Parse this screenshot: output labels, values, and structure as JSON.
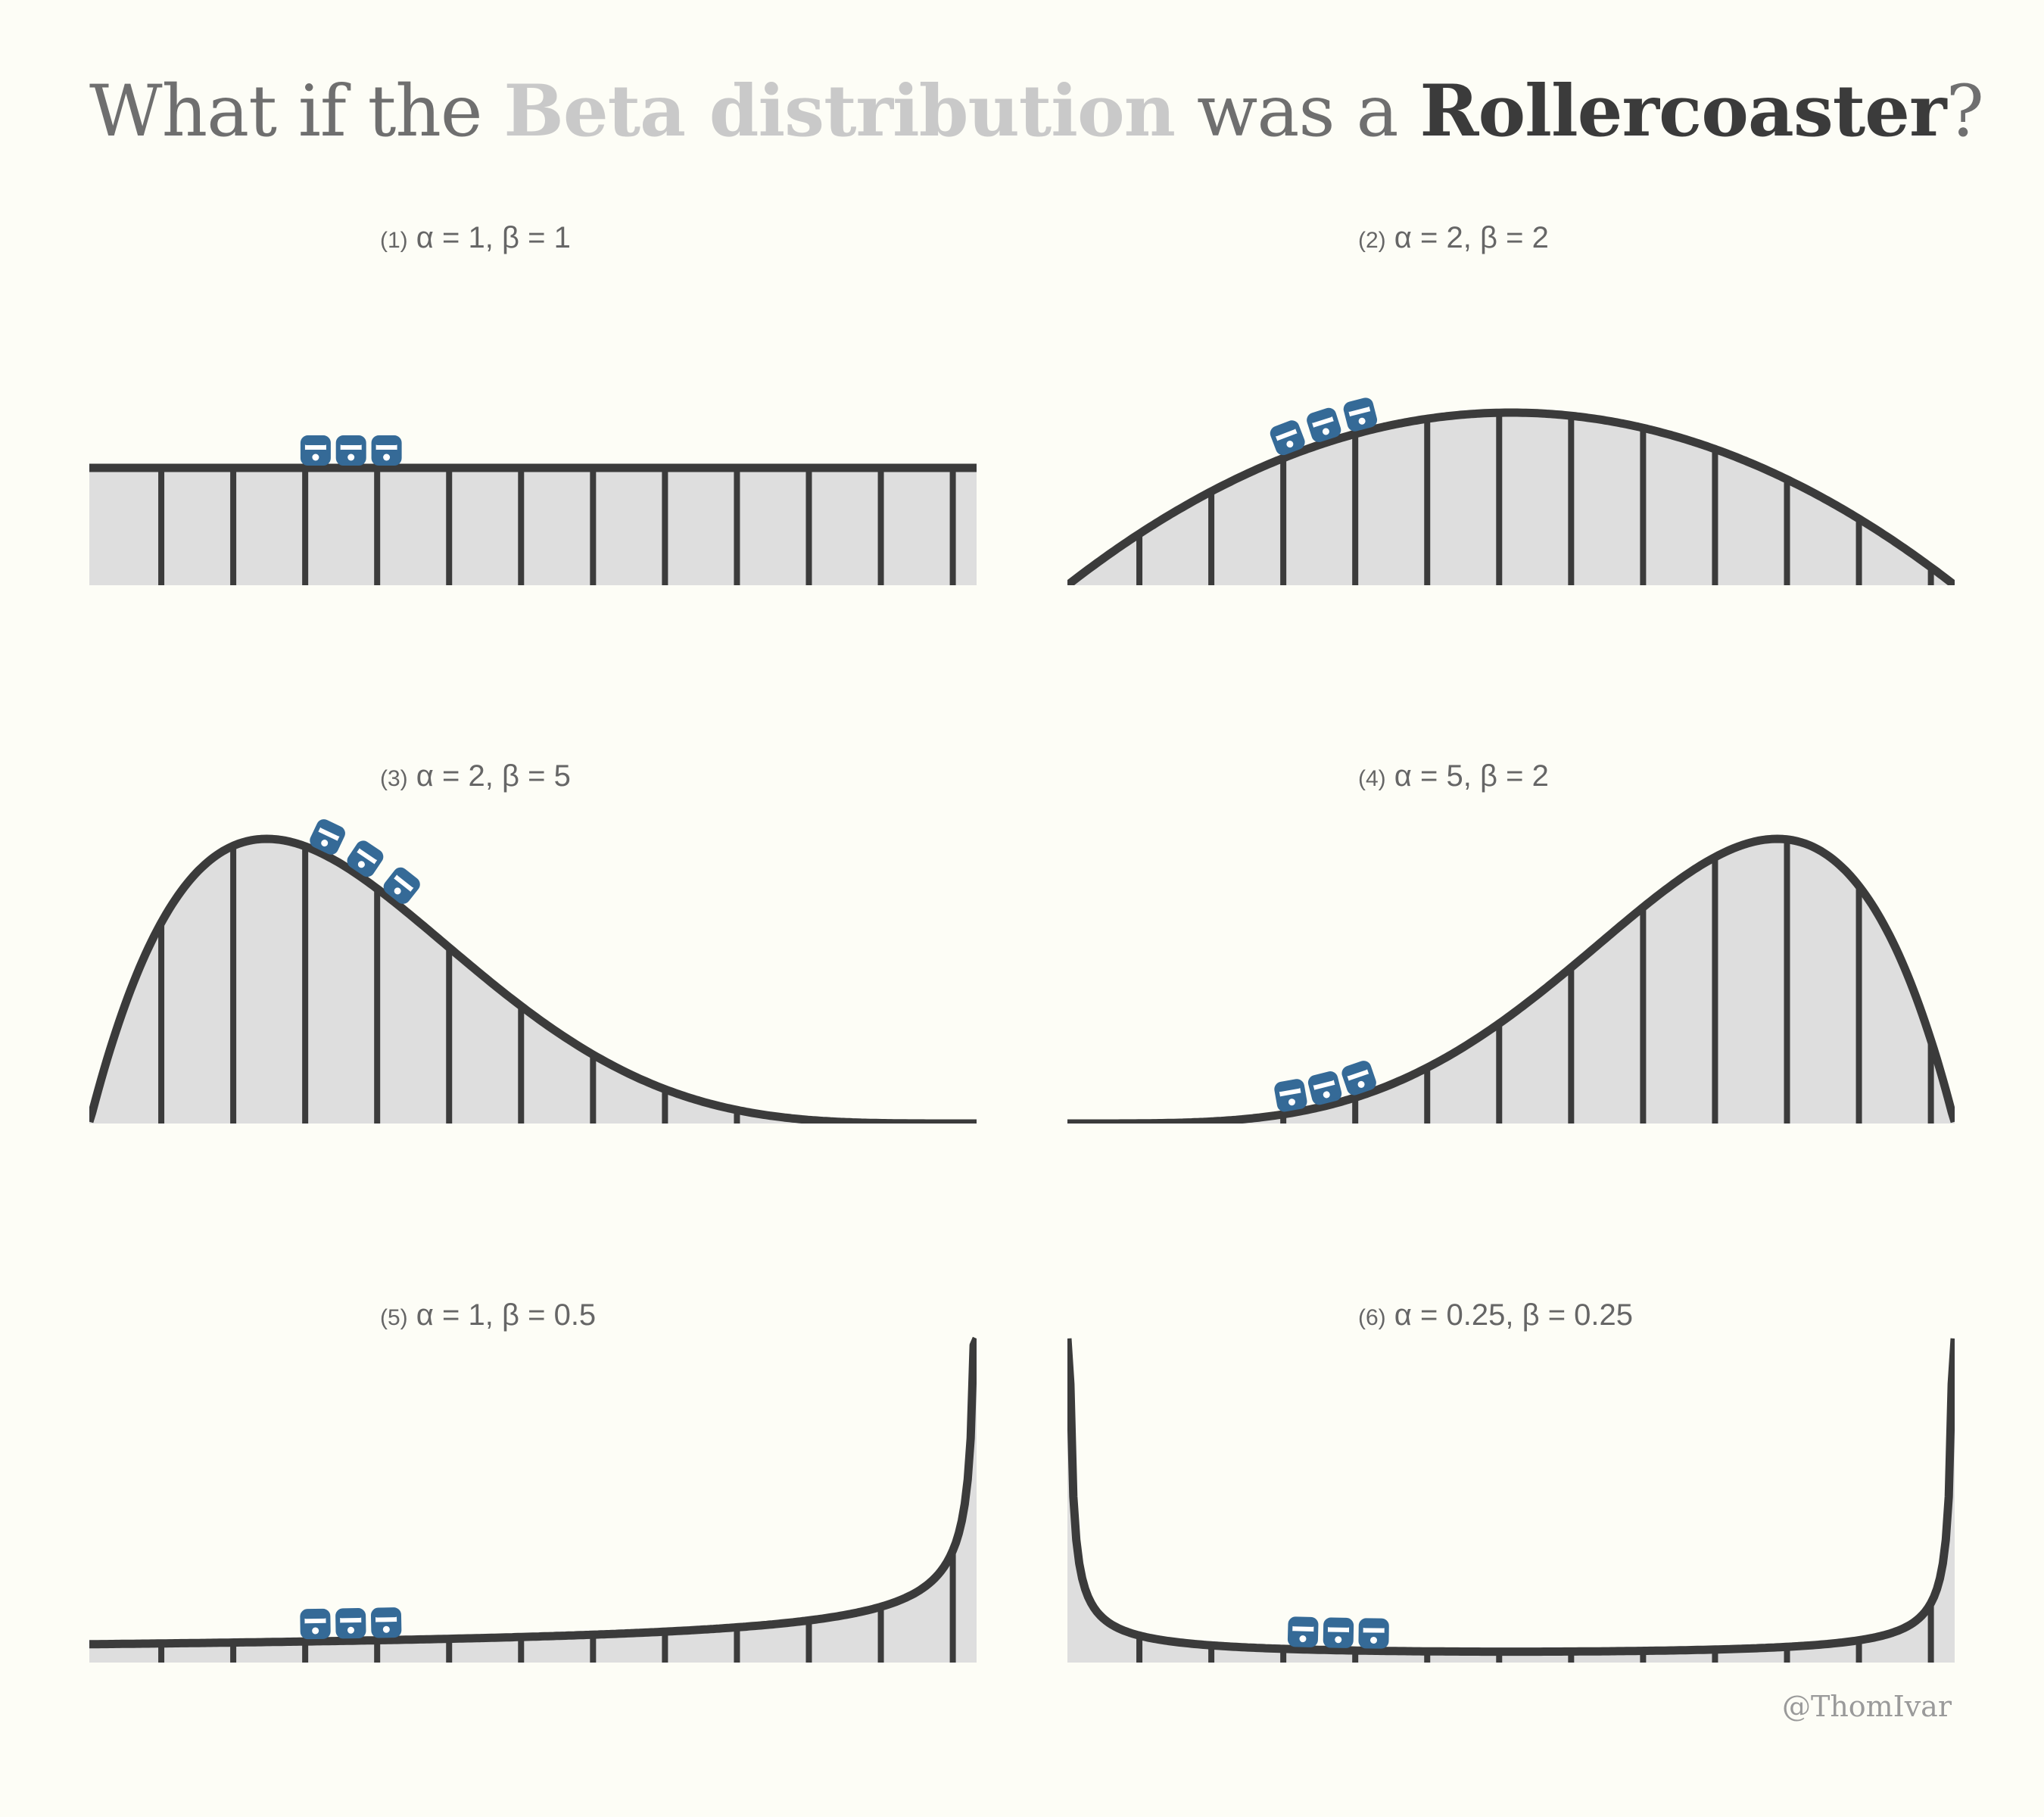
{
  "title": {
    "part1": "What if the ",
    "part2": "Beta distribution",
    "part3": " was a ",
    "part4": "Rollercoaster",
    "part5": "?"
  },
  "credit": "@ThomIvar",
  "colors": {
    "background": "#fdfdf6",
    "fill": "#dedede",
    "track": "#3b3b3b",
    "cart": "#356a97"
  },
  "chart_data": [
    {
      "type": "area",
      "label_num": "(1)",
      "label_text": "α = 1, β = 1",
      "alpha": 1,
      "beta": 1,
      "cart_x": [
        0.255,
        0.295,
        0.335
      ]
    },
    {
      "type": "area",
      "label_num": "(2)",
      "label_text": "α = 2, β = 2",
      "alpha": 2,
      "beta": 2,
      "cart_x": [
        0.255,
        0.295,
        0.335
      ]
    },
    {
      "type": "area",
      "label_num": "(3)",
      "label_text": "α = 2, β = 5",
      "alpha": 2,
      "beta": 5,
      "cart_x": [
        0.26,
        0.3,
        0.34
      ]
    },
    {
      "type": "area",
      "label_num": "(4)",
      "label_text": "α = 5, β = 2",
      "alpha": 5,
      "beta": 2,
      "cart_x": [
        0.255,
        0.295,
        0.335
      ]
    },
    {
      "type": "area",
      "label_num": "(5)",
      "label_text": "α = 1, β = 0.5",
      "alpha": 1,
      "beta": 0.5,
      "cart_x": [
        0.255,
        0.295,
        0.335
      ]
    },
    {
      "type": "area",
      "label_num": "(6)",
      "label_text": "α = 0.25, β = 0.25",
      "alpha": 0.25,
      "beta": 0.25,
      "cart_x": [
        0.265,
        0.305,
        0.345
      ]
    }
  ]
}
